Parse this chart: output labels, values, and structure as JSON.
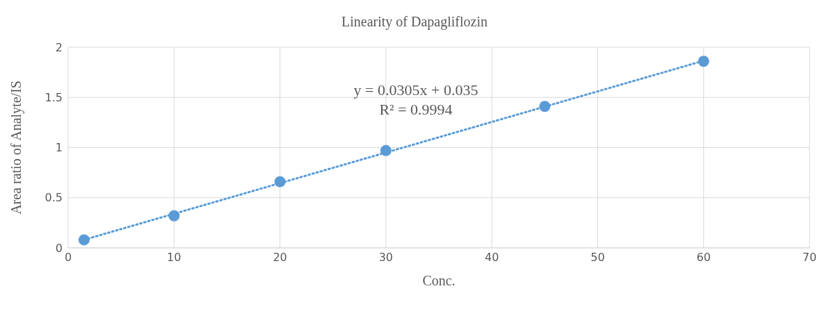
{
  "chart_data": {
    "type": "scatter",
    "title": "Linearity of Dapagliflozin",
    "xlabel": "Conc.",
    "ylabel": "Area ratio of Analyte/IS",
    "x": [
      1.5,
      10,
      20,
      30,
      45,
      60
    ],
    "series": [
      {
        "color": "#5b9bd5",
        "values": [
          0.08,
          0.32,
          0.66,
          0.97,
          1.41,
          1.86
        ],
        "marker": "circle"
      },
      {
        "type": "line",
        "color": "#5b9bd5",
        "x": [
          1.5,
          60
        ],
        "values": [
          0.081,
          1.865
        ],
        "marker": "none",
        "line_style": "dotted"
      }
    ],
    "annotations": [
      "y = 0.0305x + 0.035",
      "R² = 0.9994"
    ],
    "xlim": [
      0,
      70
    ],
    "xticks": [
      0,
      10,
      20,
      30,
      40,
      50,
      60,
      70
    ],
    "ylim": [
      0,
      2
    ],
    "yticks": [
      0,
      0.5,
      1,
      1.5,
      2
    ],
    "grid": true,
    "legend": false
  }
}
